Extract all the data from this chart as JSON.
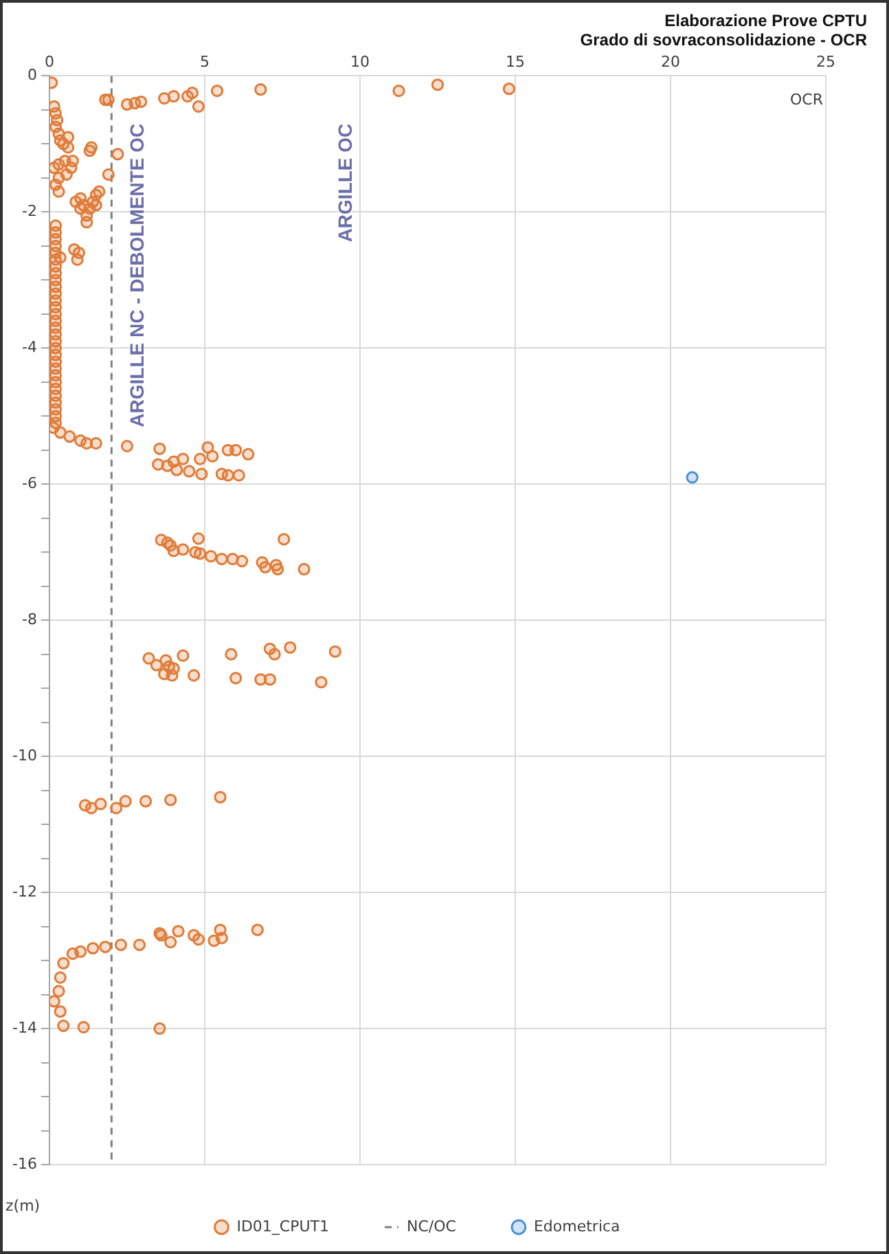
{
  "chart_data": {
    "type": "scatter",
    "title": "Elaborazione Prove CPTU",
    "subtitle": "Grado di sovraconsolidazione - OCR",
    "xlabel": "OCR",
    "ylabel": "z(m)",
    "annotations": [
      "ARGILLE NC - DEBOLMENTE OC",
      "ARGILLE OC"
    ],
    "xlim": [
      0,
      25
    ],
    "xticks": [
      0,
      5,
      10,
      15,
      20,
      25
    ],
    "ylim": [
      -16,
      0
    ],
    "yticks": [
      0,
      {
        "value": -0.5,
        "label": null
      },
      {
        "value": -1,
        "label": null
      },
      {
        "value": -1.5,
        "label": null
      },
      -2,
      {
        "value": -2.5,
        "label": null
      },
      {
        "value": -3,
        "label": null
      },
      {
        "value": -3.5,
        "label": null
      },
      -4,
      {
        "value": -4.5,
        "label": null
      },
      {
        "value": -5,
        "label": null
      },
      {
        "value": -5.5,
        "label": null
      },
      -6,
      {
        "value": -6.5,
        "label": null
      },
      {
        "value": -7,
        "label": null
      },
      {
        "value": -7.5,
        "label": null
      },
      -8,
      {
        "value": -8.5,
        "label": null
      },
      {
        "value": -9,
        "label": null
      },
      {
        "value": -9.5,
        "label": null
      },
      -10,
      {
        "value": -10.5,
        "label": null
      },
      {
        "value": -11,
        "label": null
      },
      {
        "value": -11.5,
        "label": null
      },
      -12,
      {
        "value": -12.5,
        "label": null
      },
      {
        "value": -13,
        "label": null
      },
      {
        "value": -13.5,
        "label": null
      },
      -14,
      {
        "value": -14.5,
        "label": null
      },
      {
        "value": -15,
        "label": null
      },
      {
        "value": -15.5,
        "label": null
      },
      -16
    ],
    "grid": true,
    "legend": "bottom",
    "series": [
      {
        "name": "ID01_CPUT1",
        "type": "scatter",
        "marker": "circle",
        "color": "#e07b39",
        "x": [
          0.07,
          1.8,
          1.9,
          2.5,
          2.75,
          2.95,
          3.7,
          4.0,
          4.45,
          4.6,
          4.8,
          5.4,
          6.8,
          11.25,
          12.5,
          14.8,
          0.15,
          0.2,
          0.25,
          0.2,
          0.3,
          0.35,
          0.45,
          0.6,
          0.6,
          0.3,
          0.15,
          0.5,
          0.7,
          0.75,
          0.55,
          0.3,
          0.2,
          0.3,
          1.3,
          1.35,
          2.2,
          1.9,
          0.85,
          1.0,
          1.1,
          1.2,
          1.3,
          1.4,
          1.5,
          1.6,
          1.2,
          1.0,
          1.5,
          0.2,
          0.2,
          0.2,
          0.2,
          0.2,
          0.2,
          0.2,
          0.2,
          0.2,
          0.2,
          0.2,
          0.2,
          0.2,
          0.2,
          0.2,
          0.2,
          0.2,
          0.2,
          0.2,
          0.2,
          0.2,
          0.2,
          0.2,
          0.2,
          0.2,
          0.2,
          0.2,
          0.2,
          0.2,
          0.2,
          0.35,
          0.8,
          0.95,
          0.9,
          0.13,
          0.35,
          0.65,
          1.0,
          1.2,
          1.5,
          2.5,
          3.55,
          3.5,
          3.8,
          4.0,
          4.1,
          4.3,
          4.5,
          4.85,
          4.9,
          5.1,
          5.25,
          5.75,
          6.0,
          6.4,
          5.55,
          5.75,
          6.1,
          3.6,
          3.8,
          3.9,
          4.0,
          4.3,
          4.8,
          4.7,
          4.85,
          5.2,
          5.55,
          5.9,
          6.2,
          6.85,
          6.95,
          7.3,
          7.35,
          7.55,
          8.2,
          3.2,
          3.45,
          3.75,
          3.85,
          3.7,
          3.95,
          4.0,
          4.3,
          4.65,
          5.85,
          6.0,
          7.1,
          7.25,
          7.75,
          6.8,
          7.1,
          8.75,
          9.2,
          1.15,
          1.35,
          1.65,
          2.15,
          2.45,
          3.1,
          3.9,
          5.5,
          3.55,
          3.6,
          3.9,
          4.15,
          4.65,
          4.8,
          5.3,
          5.5,
          5.55,
          6.7,
          2.9,
          2.3,
          1.8,
          1.4,
          1.0,
          0.75,
          0.45,
          0.35,
          0.3,
          0.15,
          0.35,
          0.45,
          1.1,
          3.55
        ],
        "values": [
          -0.1,
          -0.35,
          -0.35,
          -0.42,
          -0.4,
          -0.38,
          -0.33,
          -0.3,
          -0.3,
          -0.25,
          -0.45,
          -0.22,
          -0.2,
          -0.22,
          -0.13,
          -0.19,
          -0.45,
          -0.55,
          -0.65,
          -0.75,
          -0.85,
          -0.95,
          -1.0,
          -0.9,
          -1.05,
          -1.3,
          -1.35,
          -1.25,
          -1.35,
          -1.25,
          -1.45,
          -1.5,
          -1.6,
          -1.7,
          -1.1,
          -1.05,
          -1.15,
          -1.45,
          -1.85,
          -1.8,
          -1.9,
          -2.05,
          -1.95,
          -1.85,
          -1.75,
          -1.7,
          -2.15,
          -1.95,
          -1.9,
          -2.2,
          -2.3,
          -2.4,
          -2.5,
          -2.6,
          -2.7,
          -2.8,
          -2.9,
          -3.0,
          -3.1,
          -3.2,
          -3.3,
          -3.4,
          -3.5,
          -3.6,
          -3.7,
          -3.8,
          -3.9,
          -4.0,
          -4.1,
          -4.2,
          -4.3,
          -4.4,
          -4.5,
          -4.6,
          -4.7,
          -4.8,
          -4.9,
          -5.0,
          -5.1,
          -2.67,
          -2.55,
          -2.6,
          -2.7,
          -5.17,
          -5.24,
          -5.3,
          -5.36,
          -5.4,
          -5.4,
          -5.44,
          -5.48,
          -5.71,
          -5.73,
          -5.67,
          -5.79,
          -5.63,
          -5.81,
          -5.63,
          -5.85,
          -5.46,
          -5.59,
          -5.5,
          -5.5,
          -5.56,
          -5.85,
          -5.87,
          -5.87,
          -6.82,
          -6.86,
          -6.9,
          -6.98,
          -6.96,
          -6.8,
          -7.0,
          -7.02,
          -7.06,
          -7.1,
          -7.1,
          -7.13,
          -7.15,
          -7.22,
          -7.19,
          -7.25,
          -6.81,
          -7.25,
          -8.56,
          -8.66,
          -8.59,
          -8.68,
          -8.79,
          -8.81,
          -8.71,
          -8.52,
          -8.81,
          -8.5,
          -8.85,
          -8.42,
          -8.5,
          -8.4,
          -8.87,
          -8.87,
          -8.91,
          -8.46,
          -10.72,
          -10.76,
          -10.7,
          -10.76,
          -10.66,
          -10.66,
          -10.64,
          -10.6,
          -12.6,
          -12.63,
          -12.73,
          -12.57,
          -12.63,
          -12.69,
          -12.71,
          -12.55,
          -12.67,
          -12.55,
          -12.77,
          -12.77,
          -12.8,
          -12.82,
          -12.87,
          -12.9,
          -13.04,
          -13.25,
          -13.45,
          -13.6,
          -13.75,
          -13.96,
          -13.98,
          -14.0
        ]
      },
      {
        "name": "NC/OC",
        "type": "line",
        "line_style": "dashed",
        "color": "#7f7f7f",
        "x": [
          2,
          2
        ],
        "values": [
          0,
          -16
        ]
      },
      {
        "name": "Edometrica",
        "type": "scatter",
        "marker": "circle",
        "color": "#4a8fd4",
        "x": [
          20.7
        ],
        "values": [
          -5.9
        ]
      }
    ]
  }
}
